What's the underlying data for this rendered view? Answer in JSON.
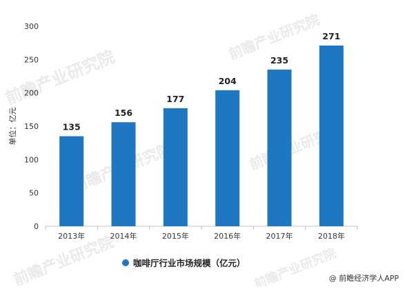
{
  "chart_data": {
    "type": "bar",
    "categories": [
      "2013年",
      "2014年",
      "2015年",
      "2016年",
      "2017年",
      "2018年"
    ],
    "series": [
      {
        "name": "咖啡厅行业市场规模（亿元）",
        "values": [
          135,
          156,
          177,
          204,
          235,
          271
        ],
        "color": "#1f77c1"
      }
    ],
    "ylabel": "单位：亿元",
    "ylim": [
      0,
      300
    ],
    "yticks": [
      0,
      50,
      100,
      150,
      200,
      250,
      300
    ],
    "grid": false,
    "legend": "bottom-center"
  },
  "watermark": "前瞻产业研究院",
  "source_credit": "@ 前瞻经济学人APP"
}
